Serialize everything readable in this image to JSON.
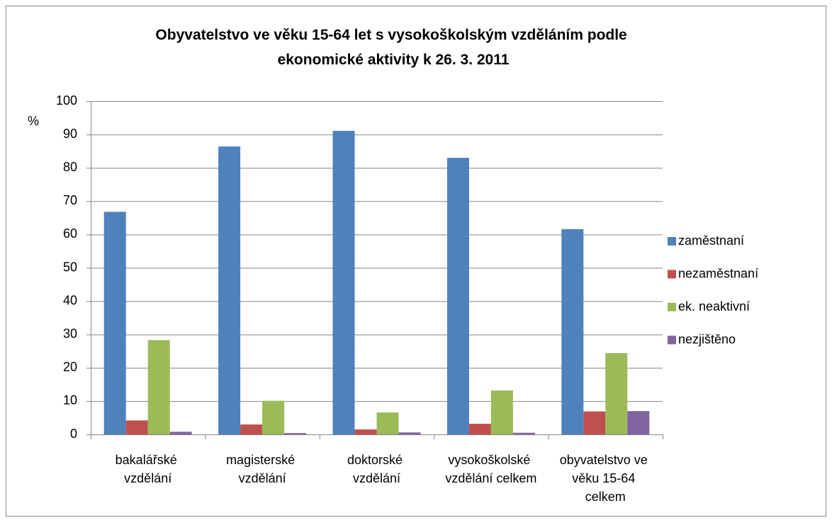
{
  "chart_data": {
    "type": "bar",
    "title": "Obyvatelstvo ve věku 15-64 let s vysokoškolským vzděláním podle ekonomické aktivity k 26. 3. 2011",
    "y_label": "%",
    "categories": [
      "bakalářské vzdělání",
      "magisterské vzdělání",
      "doktorské vzdělání",
      "vysokoškolské vzdělání celkem",
      "obyvatelstvo ve věku 15-64 celkem"
    ],
    "series": [
      {
        "name": "zaměstnaní",
        "color": "#4f81bd",
        "values": [
          66.8,
          86.4,
          91.1,
          83.0,
          61.6
        ]
      },
      {
        "name": "nezaměstnaní",
        "color": "#c0504d",
        "values": [
          4.2,
          3.0,
          1.5,
          3.2,
          6.9
        ]
      },
      {
        "name": "ek. neaktivní",
        "color": "#9bbb59",
        "values": [
          28.3,
          10.1,
          6.6,
          13.2,
          24.4
        ]
      },
      {
        "name": "nezjištěno",
        "color": "#8064a2",
        "values": [
          0.8,
          0.4,
          0.6,
          0.5,
          7.0
        ]
      }
    ],
    "ylim": [
      0,
      100
    ],
    "yticks": [
      0,
      10,
      20,
      30,
      40,
      50,
      60,
      70,
      80,
      90,
      100
    ],
    "grid": true,
    "legend": "right"
  }
}
